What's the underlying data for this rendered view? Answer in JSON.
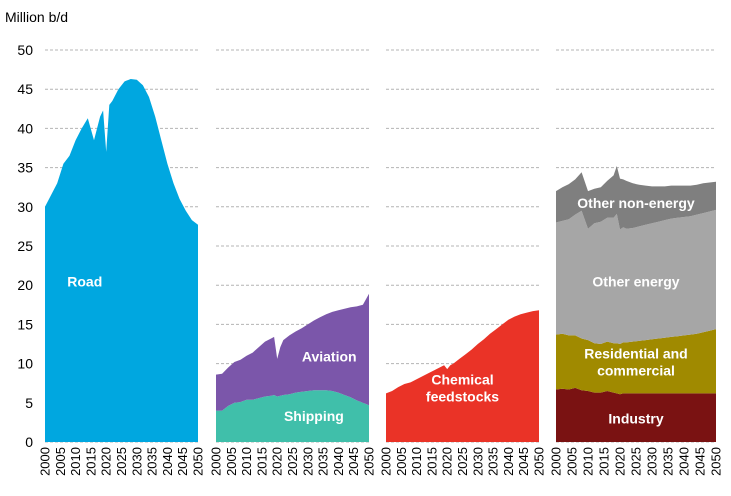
{
  "chart_data": {
    "type": "area",
    "y_unit_label": "Million b/d",
    "ylim": [
      0,
      50
    ],
    "y_ticks": [
      "0",
      "5",
      "10",
      "15",
      "20",
      "25",
      "30",
      "35",
      "40",
      "45",
      "50"
    ],
    "grid": true,
    "panels": [
      {
        "x_ticks": [
          "2000",
          "2005",
          "2010",
          "2015",
          "2020",
          "2025",
          "2030",
          "2035",
          "2040",
          "2045",
          "2050"
        ],
        "years": [
          2000,
          2002,
          2004,
          2006,
          2008,
          2010,
          2012,
          2014,
          2016,
          2018,
          2019,
          2020,
          2021,
          2022,
          2024,
          2026,
          2028,
          2030,
          2032,
          2034,
          2036,
          2038,
          2040,
          2042,
          2044,
          2046,
          2048,
          2050
        ],
        "series": [
          {
            "name": "Road",
            "color": "#00a7e0",
            "label": [
              "Road"
            ],
            "values": [
              30.0,
              31.5,
              33.0,
              35.5,
              36.5,
              38.5,
              40.0,
              41.3,
              38.5,
              41.5,
              42.3,
              37.0,
              43.0,
              43.5,
              45.0,
              46.0,
              46.3,
              46.2,
              45.5,
              44.0,
              41.5,
              38.5,
              35.5,
              33.0,
              31.0,
              29.5,
              28.3,
              27.7
            ],
            "label_at": [
              2013,
              20.5
            ]
          }
        ]
      },
      {
        "x_ticks": [
          "2000",
          "2005",
          "2010",
          "2015",
          "2020",
          "2025",
          "2030",
          "2035",
          "2040",
          "2045",
          "2050"
        ],
        "years": [
          2000,
          2002,
          2004,
          2006,
          2008,
          2010,
          2012,
          2014,
          2016,
          2018,
          2019,
          2020,
          2021,
          2022,
          2024,
          2026,
          2028,
          2030,
          2032,
          2034,
          2036,
          2038,
          2040,
          2042,
          2044,
          2046,
          2048,
          2050
        ],
        "series": [
          {
            "name": "Shipping",
            "color": "#40bfaa",
            "label": [
              "Shipping"
            ],
            "values": [
              4.0,
              4.0,
              4.6,
              5.0,
              5.1,
              5.4,
              5.4,
              5.6,
              5.8,
              5.9,
              6.0,
              5.8,
              5.9,
              6.0,
              6.1,
              6.3,
              6.4,
              6.5,
              6.6,
              6.6,
              6.6,
              6.5,
              6.3,
              6.0,
              5.7,
              5.3,
              5.0,
              4.7
            ],
            "label_at": [
              2032,
              3.3
            ]
          },
          {
            "name": "Aviation",
            "color": "#7b56aa",
            "label": [
              "Aviation"
            ],
            "values": [
              4.6,
              4.7,
              4.9,
              5.2,
              5.4,
              5.6,
              6.0,
              6.5,
              7.0,
              7.3,
              7.4,
              4.8,
              6.2,
              7.0,
              7.5,
              7.8,
              8.1,
              8.5,
              8.9,
              9.3,
              9.7,
              10.1,
              10.5,
              11.0,
              11.5,
              12.0,
              12.5,
              14.2
            ],
            "label_at": [
              2037,
              10.9
            ]
          }
        ]
      },
      {
        "x_ticks": [
          "2000",
          "2005",
          "2010",
          "2015",
          "2020",
          "2025",
          "2030",
          "2035",
          "2040",
          "2045",
          "2050"
        ],
        "years": [
          2000,
          2002,
          2004,
          2006,
          2008,
          2010,
          2012,
          2014,
          2016,
          2018,
          2019,
          2020,
          2021,
          2022,
          2024,
          2026,
          2028,
          2030,
          2032,
          2034,
          2036,
          2038,
          2040,
          2042,
          2044,
          2046,
          2048,
          2050
        ],
        "series": [
          {
            "name": "Chemical feedstocks",
            "color": "#ea3327",
            "label": [
              "Chemical",
              "feedstocks"
            ],
            "values": [
              6.2,
              6.5,
              7.0,
              7.4,
              7.6,
              8.0,
              8.4,
              8.8,
              9.2,
              9.6,
              9.8,
              9.3,
              9.8,
              10.0,
              10.6,
              11.2,
              11.8,
              12.5,
              13.1,
              13.8,
              14.4,
              15.0,
              15.6,
              16.0,
              16.3,
              16.5,
              16.7,
              16.8
            ],
            "label_at": [
              2025,
              6.9
            ]
          }
        ]
      },
      {
        "x_ticks": [
          "2000",
          "2005",
          "2010",
          "2015",
          "2020",
          "2025",
          "2030",
          "2035",
          "2040",
          "2045",
          "2050"
        ],
        "years": [
          2000,
          2002,
          2004,
          2006,
          2008,
          2010,
          2012,
          2014,
          2016,
          2018,
          2019,
          2020,
          2021,
          2022,
          2024,
          2026,
          2028,
          2030,
          2032,
          2034,
          2036,
          2038,
          2040,
          2042,
          2044,
          2046,
          2048,
          2050
        ],
        "series": [
          {
            "name": "Industry",
            "color": "#7a1212",
            "label": [
              "Industry"
            ],
            "values": [
              6.7,
              6.8,
              6.7,
              6.9,
              6.6,
              6.5,
              6.3,
              6.3,
              6.5,
              6.3,
              6.2,
              6.1,
              6.2,
              6.2,
              6.2,
              6.2,
              6.2,
              6.2,
              6.2,
              6.2,
              6.2,
              6.2,
              6.2,
              6.2,
              6.2,
              6.2,
              6.2,
              6.2
            ],
            "label_at": [
              2025,
              3.0
            ]
          },
          {
            "name": "Residential and commercial",
            "color": "#a08a00",
            "label": [
              "Residential and",
              "commercial"
            ],
            "values": [
              7.0,
              7.0,
              6.9,
              6.7,
              6.6,
              6.5,
              6.3,
              6.2,
              6.3,
              6.3,
              6.4,
              6.4,
              6.5,
              6.5,
              6.6,
              6.7,
              6.8,
              6.9,
              7.0,
              7.1,
              7.2,
              7.3,
              7.4,
              7.5,
              7.6,
              7.8,
              8.0,
              8.2
            ],
            "label_at": [
              2025,
              10.2
            ]
          },
          {
            "name": "Other energy",
            "color": "#a6a6a6",
            "label": [
              "Other energy"
            ],
            "values": [
              14.3,
              14.4,
              14.8,
              15.4,
              16.3,
              14.2,
              15.3,
              15.6,
              15.8,
              16.0,
              16.5,
              14.6,
              14.7,
              14.5,
              14.5,
              14.6,
              14.7,
              14.8,
              14.9,
              15.0,
              15.1,
              15.1,
              15.1,
              15.1,
              15.2,
              15.2,
              15.2,
              15.2
            ],
            "label_at": [
              2025,
              20.5
            ]
          },
          {
            "name": "Other non-energy",
            "color": "#7f7f7f",
            "label": [
              "Other non-energy"
            ],
            "values": [
              4.0,
              4.3,
              4.5,
              4.5,
              4.9,
              4.8,
              4.4,
              4.4,
              4.7,
              5.4,
              6.1,
              6.5,
              6.1,
              6.1,
              5.7,
              5.3,
              5.0,
              4.7,
              4.5,
              4.3,
              4.2,
              4.1,
              4.0,
              3.9,
              3.8,
              3.8,
              3.7,
              3.6
            ],
            "label_at": [
              2025,
              30.5
            ]
          }
        ]
      }
    ]
  }
}
